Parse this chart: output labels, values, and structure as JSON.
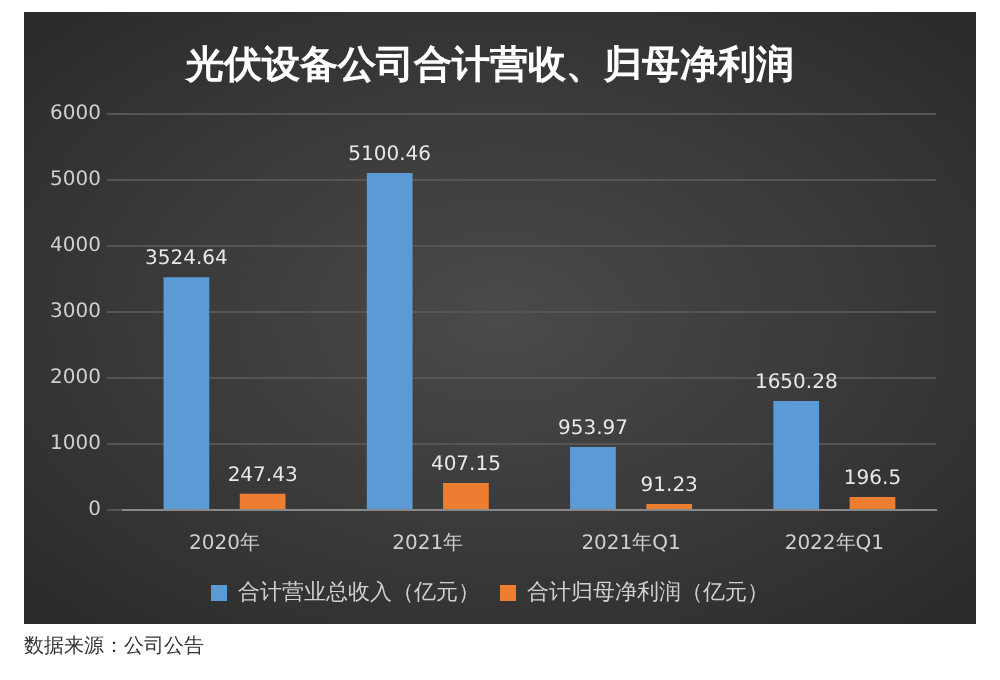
{
  "chart_data": {
    "type": "bar",
    "title": "光伏设备公司合计营收、归母净利润",
    "categories": [
      "2020年",
      "2021年",
      "2021年Q1",
      "2022年Q1"
    ],
    "series": [
      {
        "name": "合计营业总收入（亿元）",
        "color": "#5b9bd5",
        "values": [
          3524.64,
          5100.46,
          953.97,
          1650.28
        ]
      },
      {
        "name": "合计归母净利润（亿元）",
        "color": "#ed7d31",
        "values": [
          247.43,
          407.15,
          91.23,
          196.5
        ]
      }
    ],
    "ylim": [
      0,
      6000
    ],
    "yticks": [
      0,
      1000,
      2000,
      3000,
      4000,
      5000,
      6000
    ],
    "grid": "y",
    "legend": "bottom",
    "data_labels": true,
    "annotations": [
      "数据来源：公司公告"
    ]
  }
}
